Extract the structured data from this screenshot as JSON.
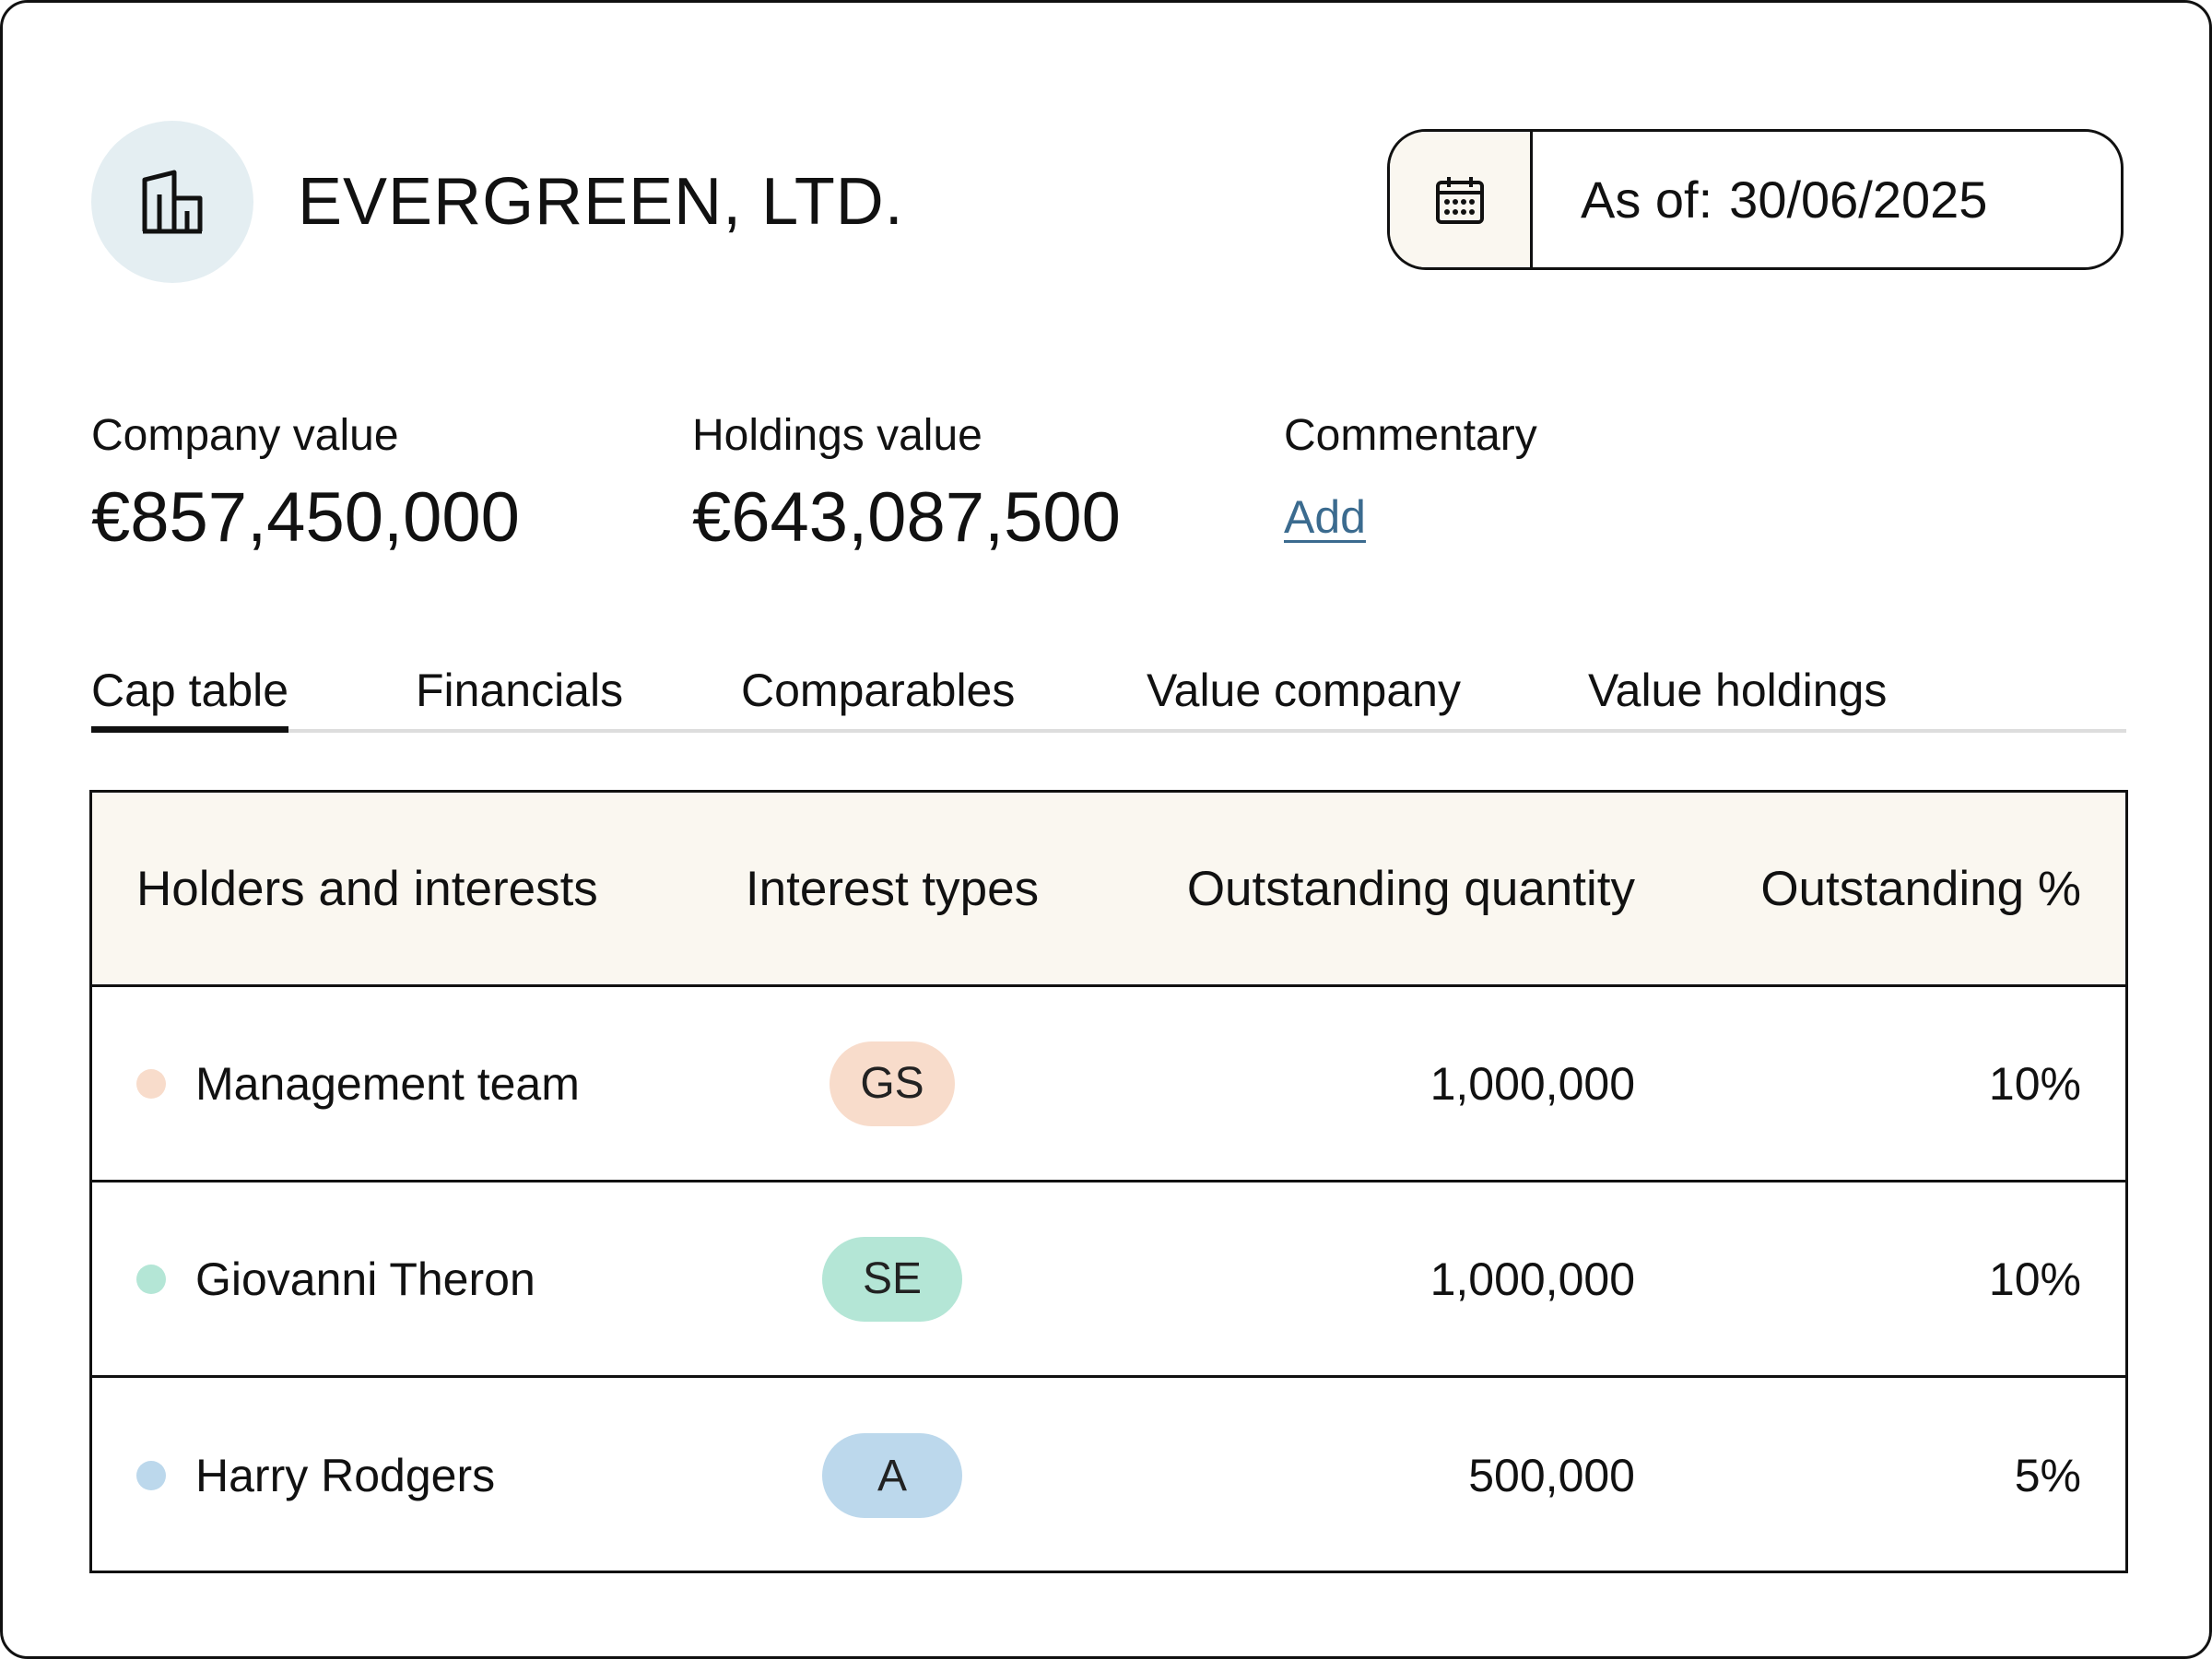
{
  "company": {
    "name": "EVERGREEN, LTD.",
    "logo_icon": "building-icon"
  },
  "as_of": {
    "label": "As of:",
    "date": "30/06/2025",
    "icon": "calendar-icon"
  },
  "metrics": {
    "company_value_label": "Company value",
    "company_value": "€857,450,000",
    "holdings_value_label": "Holdings value",
    "holdings_value": "€643,087,500",
    "commentary_label": "Commentary",
    "commentary_action": "Add"
  },
  "tabs": [
    {
      "label": "Cap table",
      "active": true
    },
    {
      "label": "Financials",
      "active": false
    },
    {
      "label": "Comparables",
      "active": false
    },
    {
      "label": "Value company",
      "active": false
    },
    {
      "label": "Value holdings",
      "active": false
    }
  ],
  "table": {
    "headers": [
      "Holders and interests",
      "Interest types",
      "Outstanding quantity",
      "Outstanding %"
    ],
    "rows": [
      {
        "holder": "Management team",
        "type": "GS",
        "quantity": "1,000,000",
        "percent": "10%",
        "dot_color": "#f8dccb",
        "badge_color": "#f8dccb"
      },
      {
        "holder": "Giovanni Theron",
        "type": "SE",
        "quantity": "1,000,000",
        "percent": "10%",
        "dot_color": "#b4e6d6",
        "badge_color": "#b4e6d6"
      },
      {
        "holder": "Harry Rodgers",
        "type": "A",
        "quantity": "500,000",
        "percent": "5%",
        "dot_color": "#bcd8ec",
        "badge_color": "#bcd8ec"
      }
    ]
  },
  "colors": {
    "link": "#3b6b8f",
    "header_bg": "#faf7f0",
    "logo_bg": "#e4eef2"
  }
}
